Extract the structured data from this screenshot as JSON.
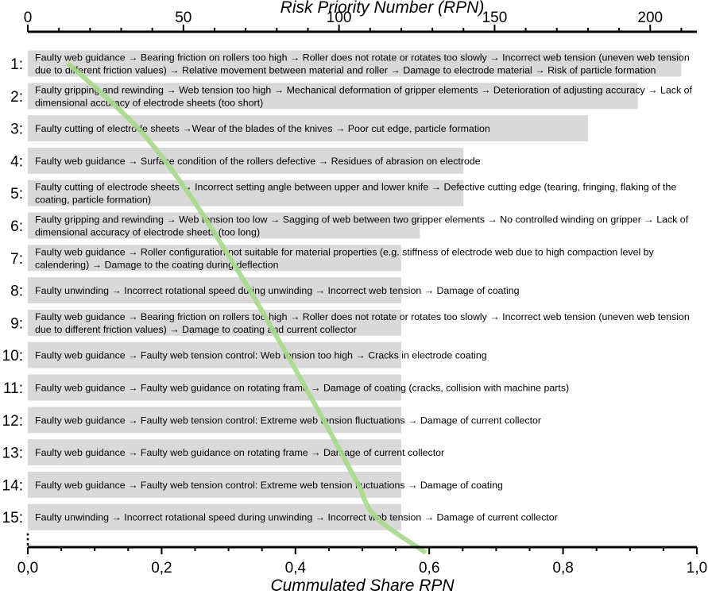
{
  "chart_data": {
    "type": "bar",
    "orientation": "horizontal",
    "top_axis": {
      "title": "Risk Priority Number (RPN)",
      "range": [
        0,
        215
      ],
      "tick_values": [
        0,
        50,
        100,
        150,
        200
      ],
      "tick_labels": [
        "0",
        "50",
        "100",
        "150",
        "200"
      ]
    },
    "bottom_axis": {
      "title": "Cummulated Share RPN",
      "range": [
        0,
        1.0
      ],
      "tick_values": [
        0,
        0.2,
        0.4,
        0.6,
        0.8,
        1.0
      ],
      "tick_labels": [
        "0,0",
        "0,2",
        "0,4",
        "0,6",
        "0,8",
        "1,0"
      ]
    },
    "ellipsis": "⋮",
    "bars": [
      {
        "rank": "1:",
        "value": 210,
        "text": [
          "Faulty web guidance → Bearing friction on rollers too high → Roller does not rotate or rotates too slowly → Incorrect web tension (uneven web tension",
          "due to different friction values) → Relative movement between material and roller → Damage to electrode material → Risk of particle formation"
        ]
      },
      {
        "rank": "2:",
        "value": 196,
        "text": [
          "Faulty gripping and rewinding → Web tension too high → Mechanical deformation of gripper elements → Deterioration of adjusting accuracy → Lack of",
          "dimensional accuracy of electrode sheets (too short)"
        ]
      },
      {
        "rank": "3:",
        "value": 180,
        "text": [
          "Faulty cutting of electrode sheets →Wear of the blades of the knives → Poor cut edge, particle formation"
        ]
      },
      {
        "rank": "4:",
        "value": 140,
        "text": [
          "Faulty web guidance → Surface condition of the rollers defective → Residues of abrasion on electrode"
        ]
      },
      {
        "rank": "5:",
        "value": 140,
        "text": [
          "Faulty cutting of electrode sheets → Incorrect setting angle between upper and lower knife → Defective cutting edge (tearing, fringing, flaking of the",
          "coating, particle formation)"
        ]
      },
      {
        "rank": "6:",
        "value": 126,
        "text": [
          "Faulty gripping and rewinding → Web tension too low → Sagging of web between two gripper elements → No controlled winding on gripper → Lack of",
          "dimensional accuracy of electrode sheets (too long)"
        ]
      },
      {
        "rank": "7:",
        "value": 120,
        "text": [
          "Faulty web guidance → Roller configuration not suitable for material properties (e.g. stiffness of electrode web due to high compaction level by",
          "calendering) → Damage to the coating during deflection"
        ]
      },
      {
        "rank": "8:",
        "value": 120,
        "text": [
          "Faulty unwinding → Incorrect rotational speed during unwinding → Incorrect web tension → Damage of coating"
        ]
      },
      {
        "rank": "9:",
        "value": 120,
        "text": [
          "Faulty web guidance → Bearing friction on rollers too high → Roller does not rotate or rotates too slowly → Incorrect web tension (uneven web tension",
          "due to different friction values) → Damage to coating and current collector"
        ]
      },
      {
        "rank": "10:",
        "value": 120,
        "text": [
          "Faulty web guidance → Faulty web tension control: Web tension too high → Cracks in electrode coating"
        ]
      },
      {
        "rank": "11:",
        "value": 120,
        "text": [
          "Faulty web guidance → Faulty web guidance on rotating frame → Damage of coating (cracks, collision with machine parts)"
        ]
      },
      {
        "rank": "12:",
        "value": 120,
        "text": [
          "Faulty web guidance → Faulty web tension control: Extreme web tension fluctuations → Damage of current collector"
        ]
      },
      {
        "rank": "13:",
        "value": 120,
        "text": [
          "Faulty web guidance → Faulty web guidance on rotating frame → Damage of current collector"
        ]
      },
      {
        "rank": "14:",
        "value": 120,
        "text": [
          "Faulty web guidance → Faulty web tension control: Extreme web tension fluctuations → Damage of coating"
        ]
      },
      {
        "rank": "15:",
        "value": 120,
        "text": [
          "Faulty unwinding → Incorrect rotational speed during unwinding → Incorrect web tension → Damage of current collector"
        ]
      }
    ],
    "cumulative_line": {
      "points": [
        {
          "share": 0.06,
          "rank": 1
        },
        {
          "share": 0.115,
          "rank": 2
        },
        {
          "share": 0.165,
          "rank": 3
        },
        {
          "share": 0.205,
          "rank": 4
        },
        {
          "share": 0.24,
          "rank": 5
        },
        {
          "share": 0.272,
          "rank": 6
        },
        {
          "share": 0.302,
          "rank": 7
        },
        {
          "share": 0.332,
          "rank": 8
        },
        {
          "share": 0.36,
          "rank": 9
        },
        {
          "share": 0.388,
          "rank": 10
        },
        {
          "share": 0.415,
          "rank": 11
        },
        {
          "share": 0.442,
          "rank": 12
        },
        {
          "share": 0.468,
          "rank": 13
        },
        {
          "share": 0.494,
          "rank": 14
        },
        {
          "share": 0.52,
          "rank": 15
        },
        {
          "share": 0.595,
          "rank": 16.1
        }
      ],
      "color": "#a6d98b"
    },
    "bar_color": "#d9d9d9"
  }
}
